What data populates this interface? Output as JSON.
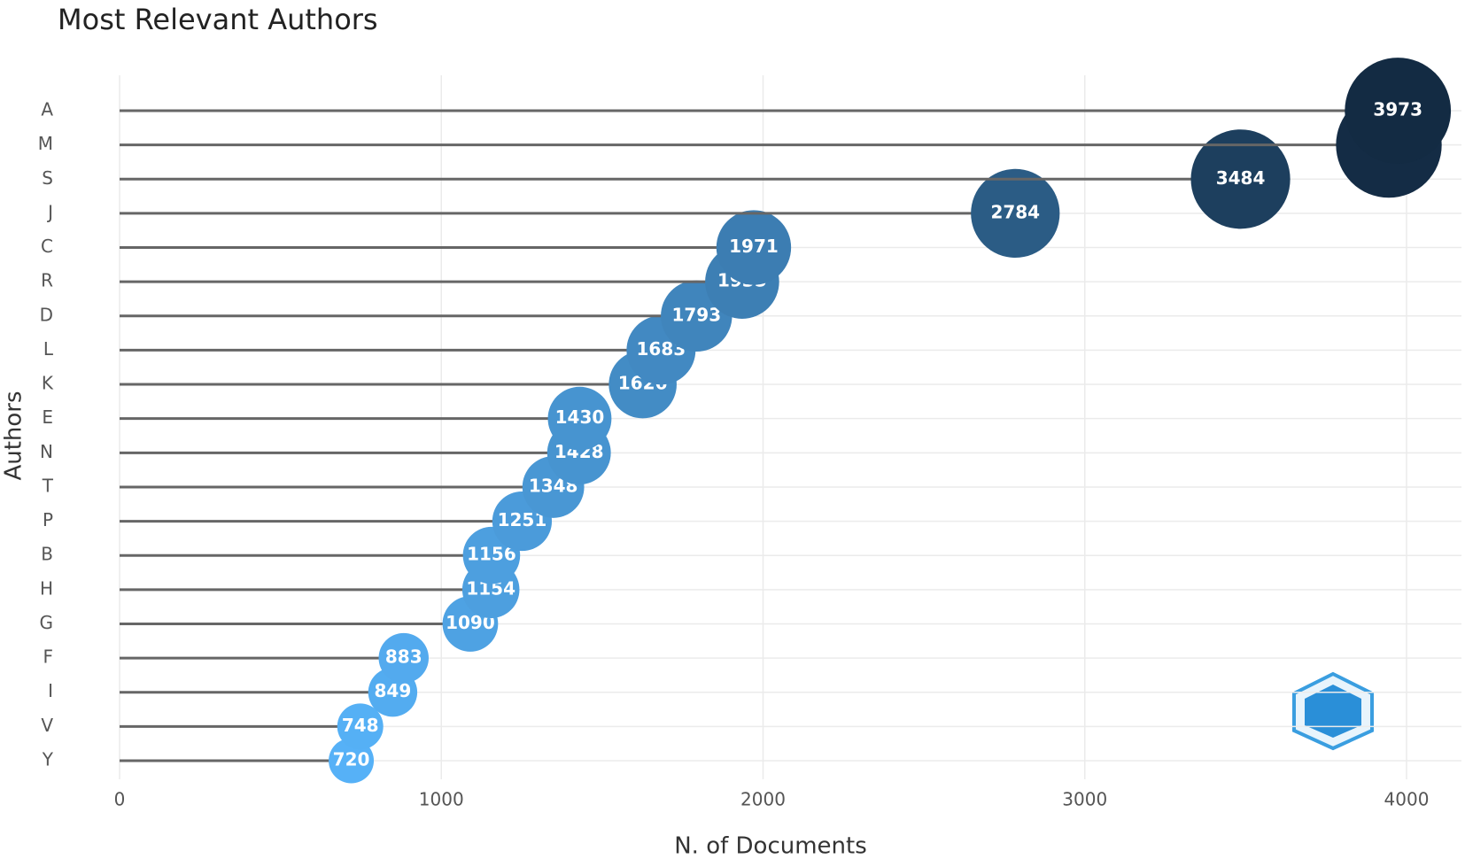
{
  "chart_data": {
    "type": "lollipop",
    "title": "Most Relevant Authors",
    "x_label": "N. of Documents",
    "y_label": "Authors",
    "categories": [
      "A",
      "M",
      "S",
      "J",
      "C",
      "R",
      "D",
      "L",
      "K",
      "E",
      "N",
      "T",
      "P",
      "B",
      "H",
      "G",
      "F",
      "I",
      "V",
      "Y"
    ],
    "values": [
      3973,
      3945,
      3484,
      2784,
      1971,
      1935,
      1793,
      1683,
      1626,
      1430,
      1428,
      1348,
      1251,
      1156,
      1154,
      1090,
      883,
      849,
      748,
      720
    ],
    "color_range": [
      "#56b1f7",
      "#132b43"
    ],
    "stem_color": "#666666",
    "xlim": [
      0,
      4000
    ],
    "xticks": [
      0,
      1000,
      2000,
      3000,
      4000
    ],
    "grid": true
  }
}
